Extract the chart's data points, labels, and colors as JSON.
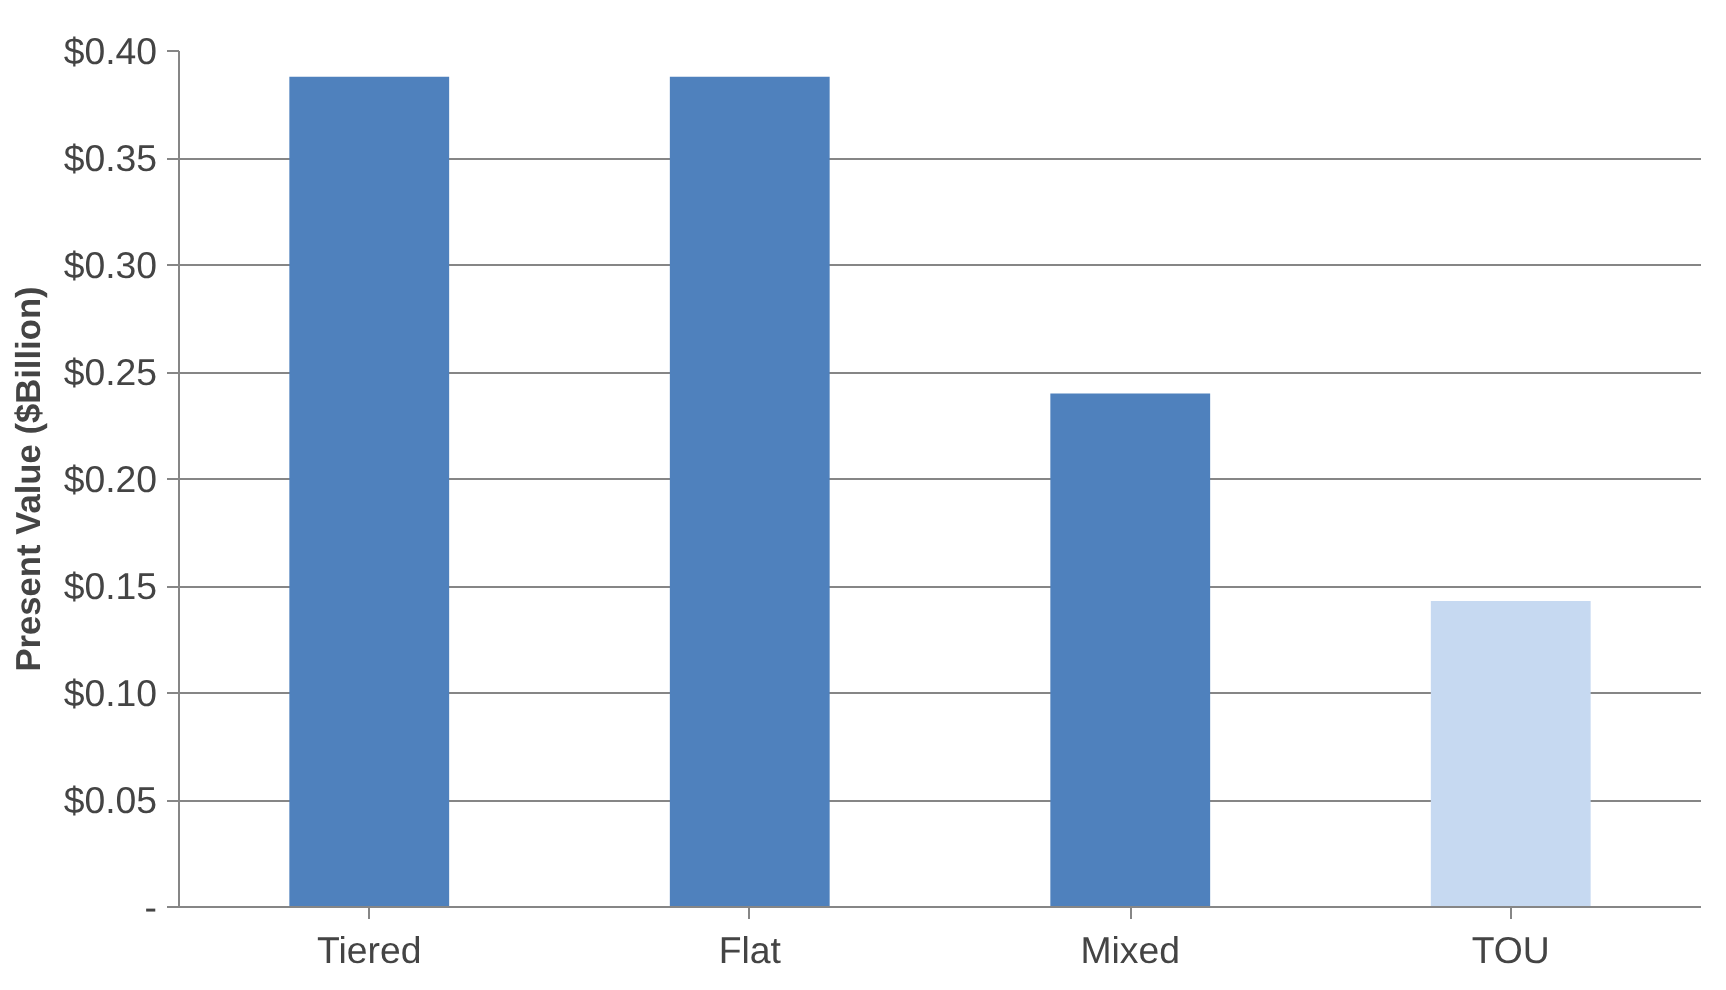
{
  "chart_data": {
    "type": "bar",
    "ylabel": "Present Value ($Billion)",
    "categories": [
      "Tiered",
      "Flat",
      "Mixed",
      "TOU"
    ],
    "values": [
      0.388,
      0.388,
      0.24,
      0.143
    ],
    "colors": [
      "#4f81bd",
      "#4f81bd",
      "#4f81bd",
      "#c6d9f1"
    ],
    "ylim": [
      0,
      0.4
    ],
    "yticks": [
      {
        "value": 0,
        "label": "-"
      },
      {
        "value": 0.05,
        "label": "$0.05"
      },
      {
        "value": 0.1,
        "label": "$0.10"
      },
      {
        "value": 0.15,
        "label": "$0.15"
      },
      {
        "value": 0.2,
        "label": "$0.20"
      },
      {
        "value": 0.25,
        "label": "$0.25"
      },
      {
        "value": 0.3,
        "label": "$0.30"
      },
      {
        "value": 0.35,
        "label": "$0.35"
      },
      {
        "value": 0.4,
        "label": "$0.40"
      }
    ],
    "grid": "y"
  }
}
